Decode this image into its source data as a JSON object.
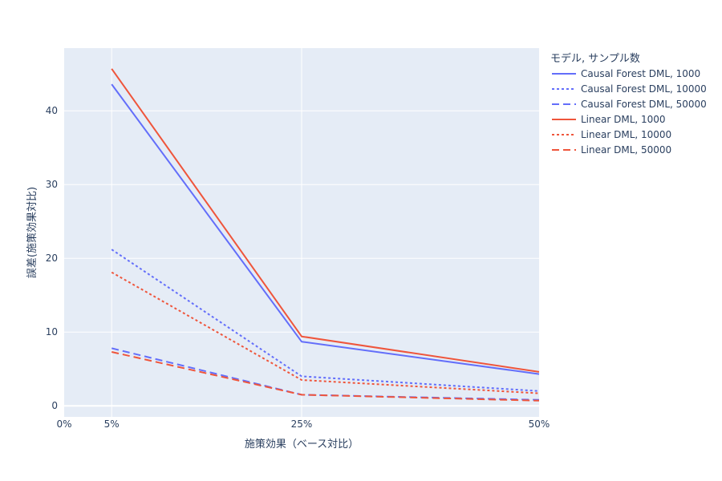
{
  "chart_data": {
    "type": "line",
    "xlabel": "施策効果（ベース対比）",
    "ylabel": "誤差(施策効果対比)",
    "xlim": [
      0,
      50
    ],
    "ylim": [
      -1.5,
      48.5
    ],
    "x_ticks": [
      {
        "value": 0,
        "label": "0%"
      },
      {
        "value": 5,
        "label": "5%"
      },
      {
        "value": 25,
        "label": "25%"
      },
      {
        "value": 50,
        "label": "50%"
      }
    ],
    "y_ticks": [
      0,
      10,
      20,
      30,
      40
    ],
    "grid": true,
    "legend_title": "モデル, サンプル数",
    "legend_position": "right",
    "x": [
      5,
      25,
      50
    ],
    "series": [
      {
        "name": "Causal Forest DML, 1000",
        "values": [
          43.6,
          8.7,
          4.3
        ],
        "color": "#636efa",
        "dash": "solid"
      },
      {
        "name": "Causal Forest DML, 10000",
        "values": [
          21.2,
          4.0,
          2.0
        ],
        "color": "#636efa",
        "dash": "dot"
      },
      {
        "name": "Causal Forest DML, 50000",
        "values": [
          7.8,
          1.5,
          0.8
        ],
        "color": "#636efa",
        "dash": "dash"
      },
      {
        "name": "Linear DML, 1000",
        "values": [
          45.7,
          9.4,
          4.6
        ],
        "color": "#ef553b",
        "dash": "solid"
      },
      {
        "name": "Linear DML, 10000",
        "values": [
          18.1,
          3.5,
          1.7
        ],
        "color": "#ef553b",
        "dash": "dot"
      },
      {
        "name": "Linear DML, 50000",
        "values": [
          7.3,
          1.5,
          0.7
        ],
        "color": "#ef553b",
        "dash": "dash"
      }
    ]
  }
}
